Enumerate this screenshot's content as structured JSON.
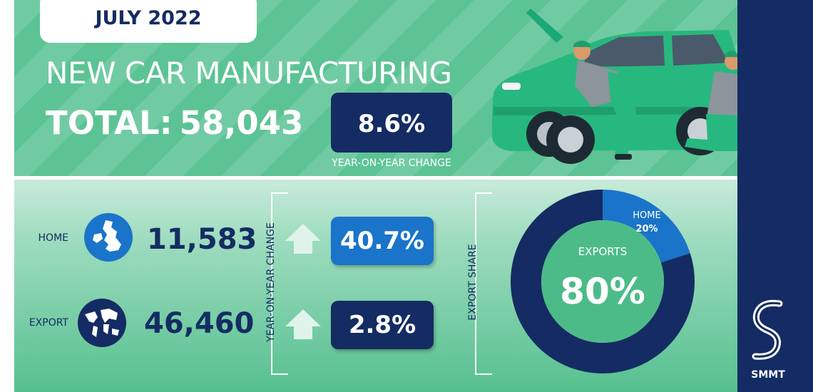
{
  "header": {
    "date": "JULY 2022",
    "title": "NEW CAR MANUFACTURING",
    "total_label": "TOTAL:",
    "total_value": "58,043",
    "yoy_value": "8.6%",
    "yoy_caption": "YEAR-ON-YEAR CHANGE"
  },
  "rows": [
    {
      "label": "HOME",
      "value": "11,583",
      "change": "40.7%",
      "direction": "up",
      "icon": "uk-map-icon"
    },
    {
      "label": "EXPORT",
      "value": "46,460",
      "change": "2.8%",
      "direction": "up",
      "icon": "world-map-icon"
    }
  ],
  "labels": {
    "yoy_vertical": "YEAR-ON-YEAR CHANGE",
    "share_vertical": "EXPORT SHARE"
  },
  "brand": {
    "name": "SMMT"
  },
  "colors": {
    "navy": "#142c63",
    "blue": "#1a74c9",
    "green": "#5cc394",
    "arrow": "#dff3ea"
  },
  "chart_data": {
    "type": "pie",
    "title": "",
    "categories": [
      "EXPORTS",
      "HOME"
    ],
    "values": [
      80,
      20
    ],
    "data_labels": [
      "80%",
      "20%"
    ],
    "colors": [
      "#142c63",
      "#1a74c9"
    ],
    "legend": "none"
  }
}
